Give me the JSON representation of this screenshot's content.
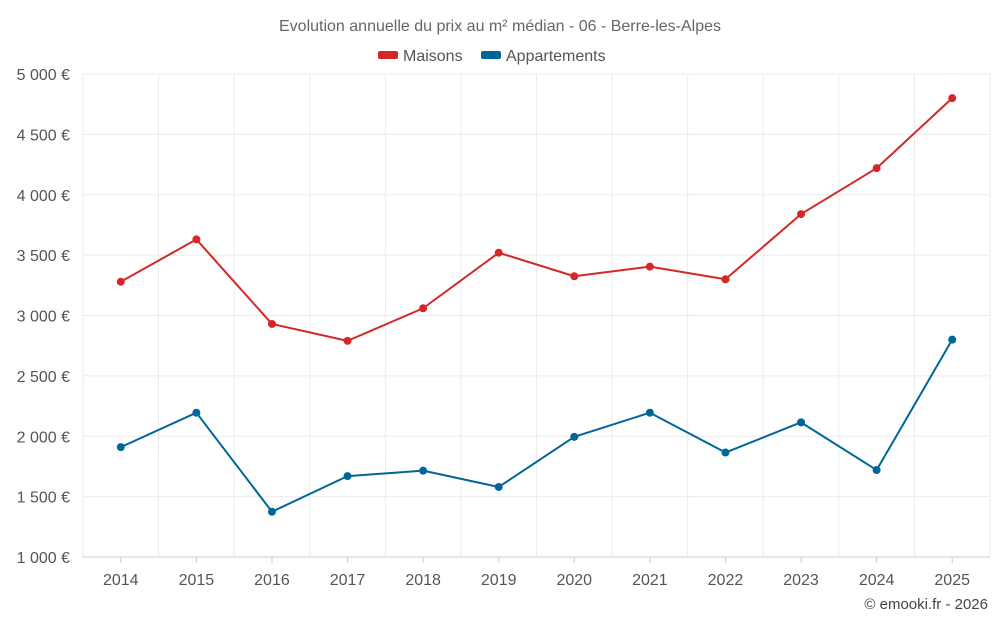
{
  "chart_data": {
    "type": "line",
    "title": "Evolution annuelle du prix au m² médian - 06 - Berre-les-Alpes",
    "categories": [
      "2014",
      "2015",
      "2016",
      "2017",
      "2018",
      "2019",
      "2020",
      "2021",
      "2022",
      "2023",
      "2024",
      "2025"
    ],
    "series": [
      {
        "name": "Maisons",
        "color": "#d62728",
        "values": [
          3280,
          3630,
          2930,
          2790,
          3060,
          3520,
          3325,
          3405,
          3300,
          3840,
          4220,
          4800
        ]
      },
      {
        "name": "Appartements",
        "color": "#006699",
        "values": [
          1910,
          2195,
          1375,
          1670,
          1715,
          1580,
          1995,
          2195,
          1865,
          2115,
          1720,
          2800
        ]
      }
    ],
    "ylim": [
      1000,
      5000
    ],
    "yticks": [
      {
        "value": 1000,
        "label": "1 000 €"
      },
      {
        "value": 1500,
        "label": "1 500 €"
      },
      {
        "value": 2000,
        "label": "2 000 €"
      },
      {
        "value": 2500,
        "label": "2 500 €"
      },
      {
        "value": 3000,
        "label": "3 000 €"
      },
      {
        "value": 3500,
        "label": "3 500 €"
      },
      {
        "value": 4000,
        "label": "4 000 €"
      },
      {
        "value": 4500,
        "label": "4 500 €"
      },
      {
        "value": 5000,
        "label": "5 000 €"
      }
    ],
    "grid": true,
    "legend_position": "top-center",
    "xlabel": "",
    "ylabel": ""
  },
  "credit": "© emooki.fr - 2026"
}
